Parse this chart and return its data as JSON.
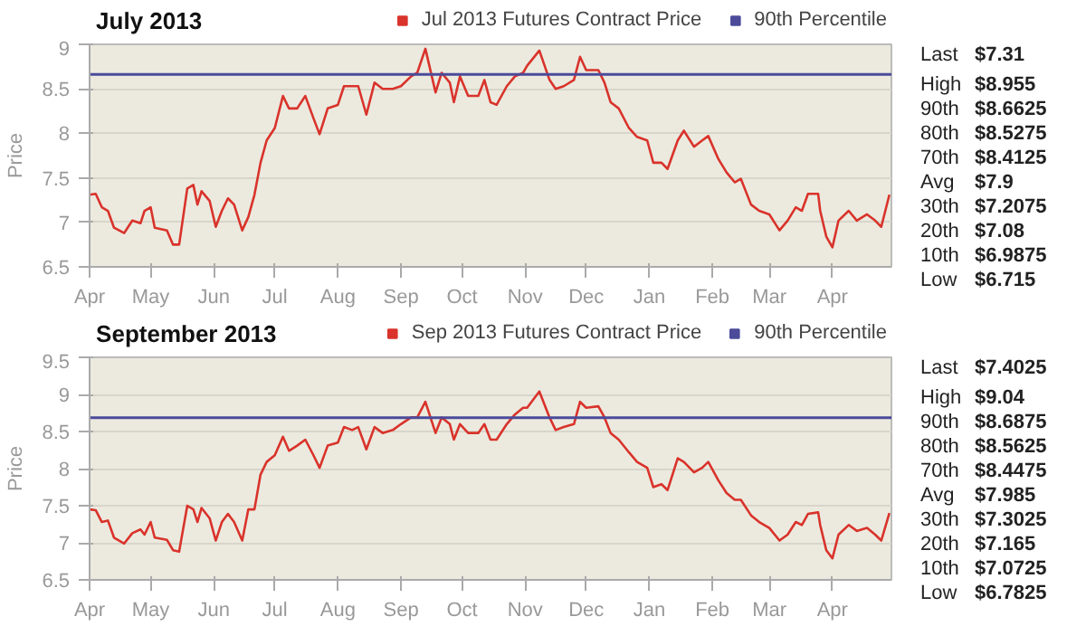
{
  "chart_data": [
    {
      "type": "line",
      "title": "July 2013",
      "ylabel": "Price",
      "legend": "top right",
      "grid": "y",
      "x": [
        "2012-04-01",
        "2012-04-04",
        "2012-04-07",
        "2012-04-10",
        "2012-04-13",
        "2012-04-18",
        "2012-04-22",
        "2012-04-26",
        "2012-04-28",
        "2012-05-01",
        "2012-05-03",
        "2012-05-09",
        "2012-05-12",
        "2012-05-15",
        "2012-05-19",
        "2012-05-22",
        "2012-05-24",
        "2012-05-26",
        "2012-05-30",
        "2012-06-02",
        "2012-06-05",
        "2012-06-08",
        "2012-06-11",
        "2012-06-15",
        "2012-06-18",
        "2012-06-21",
        "2012-06-24",
        "2012-06-27",
        "2012-07-01",
        "2012-07-05",
        "2012-07-08",
        "2012-07-12",
        "2012-07-16",
        "2012-07-20",
        "2012-07-23",
        "2012-07-27",
        "2012-08-01",
        "2012-08-04",
        "2012-08-08",
        "2012-08-11",
        "2012-08-15",
        "2012-08-19",
        "2012-08-23",
        "2012-08-28",
        "2012-09-01",
        "2012-09-06",
        "2012-09-09",
        "2012-09-13",
        "2012-09-18",
        "2012-09-21",
        "2012-09-25",
        "2012-09-27",
        "2012-09-30",
        "2012-10-04",
        "2012-10-09",
        "2012-10-12",
        "2012-10-15",
        "2012-10-18",
        "2012-10-23",
        "2012-10-27",
        "2012-10-31",
        "2012-11-02",
        "2012-11-08",
        "2012-11-13",
        "2012-11-16",
        "2012-11-20",
        "2012-11-25",
        "2012-11-28",
        "2012-12-01",
        "2012-12-07",
        "2012-12-10",
        "2012-12-13",
        "2012-12-17",
        "2012-12-22",
        "2012-12-26",
        "2012-12-31",
        "2013-01-03",
        "2013-01-07",
        "2013-01-10",
        "2013-01-15",
        "2013-01-18",
        "2013-01-23",
        "2013-01-27",
        "2013-01-30",
        "2013-02-04",
        "2013-02-08",
        "2013-02-12",
        "2013-02-15",
        "2013-02-20",
        "2013-02-24",
        "2013-03-01",
        "2013-03-06",
        "2013-03-10",
        "2013-03-14",
        "2013-03-17",
        "2013-03-20",
        "2013-03-25",
        "2013-03-26",
        "2013-03-29",
        "2013-04-01",
        "2013-04-04",
        "2013-04-09",
        "2013-04-13",
        "2013-04-18",
        "2013-04-22",
        "2013-04-25",
        "2013-04-29"
      ],
      "series": [
        {
          "name": "Jul 2013 Futures Contract Price",
          "color": "#d9332b",
          "values": [
            7.31,
            7.32,
            7.17,
            7.13,
            6.94,
            6.88,
            7.02,
            6.99,
            7.13,
            7.17,
            6.94,
            6.91,
            6.75,
            6.75,
            7.38,
            7.42,
            7.2,
            7.35,
            7.24,
            6.95,
            7.13,
            7.27,
            7.2,
            6.91,
            7.06,
            7.31,
            7.67,
            7.92,
            8.06,
            8.42,
            8.28,
            8.28,
            8.42,
            8.17,
            7.99,
            8.28,
            8.32,
            8.53,
            8.53,
            8.53,
            8.21,
            8.57,
            8.5,
            8.5,
            8.53,
            8.64,
            8.68,
            8.95,
            8.46,
            8.68,
            8.57,
            8.35,
            8.64,
            8.42,
            8.42,
            8.6,
            8.35,
            8.32,
            8.53,
            8.64,
            8.68,
            8.76,
            8.93,
            8.6,
            8.5,
            8.53,
            8.6,
            8.86,
            8.71,
            8.71,
            8.57,
            8.35,
            8.28,
            8.06,
            7.96,
            7.92,
            7.67,
            7.67,
            7.6,
            7.92,
            8.03,
            7.85,
            7.92,
            7.97,
            7.71,
            7.56,
            7.45,
            7.49,
            7.2,
            7.13,
            7.09,
            6.91,
            7.02,
            7.17,
            7.13,
            7.32,
            7.32,
            7.13,
            6.84,
            6.72,
            7.02,
            7.13,
            7.02,
            7.09,
            7.02,
            6.95,
            7.31
          ]
        }
      ],
      "ref_lines": [
        {
          "axis": "y",
          "value": 8.6625,
          "label": "90th Percentile",
          "color": "#4b4b9a"
        }
      ],
      "xlim": [
        "2012-04-01",
        "2013-04-30"
      ],
      "xticks": [
        {
          "value": "2012-04-01",
          "label": "Apr"
        },
        {
          "value": "2012-05-01",
          "label": "May"
        },
        {
          "value": "2012-06-01",
          "label": "Jun"
        },
        {
          "value": "2012-07-01",
          "label": "Jul"
        },
        {
          "value": "2012-08-01",
          "label": "Aug"
        },
        {
          "value": "2012-09-01",
          "label": "Sep"
        },
        {
          "value": "2012-10-01",
          "label": "Oct"
        },
        {
          "value": "2012-11-01",
          "label": "Nov"
        },
        {
          "value": "2012-12-01",
          "label": "Dec"
        },
        {
          "value": "2013-01-01",
          "label": "Jan"
        },
        {
          "value": "2013-02-01",
          "label": "Feb"
        },
        {
          "value": "2013-03-01",
          "label": "Mar"
        },
        {
          "value": "2013-04-01",
          "label": "Apr"
        }
      ],
      "ylim": [
        6.5,
        9
      ],
      "yticks": [
        6.5,
        7,
        7.5,
        8,
        8.5,
        9
      ],
      "annotations": [
        "Last $7.31",
        "High $8.955",
        "90th $8.6625",
        "80th $8.5275",
        "70th $8.4125",
        "Avg $7.9",
        "30th $7.2075",
        "20th $7.08",
        "10th $6.9875",
        "Low $6.715"
      ]
    },
    {
      "type": "line",
      "title": "September 2013",
      "ylabel": "Price",
      "legend": "top right",
      "grid": "y",
      "x": [
        "2012-04-01",
        "2012-04-04",
        "2012-04-07",
        "2012-04-10",
        "2012-04-13",
        "2012-04-18",
        "2012-04-22",
        "2012-04-26",
        "2012-04-28",
        "2012-05-01",
        "2012-05-03",
        "2012-05-09",
        "2012-05-12",
        "2012-05-15",
        "2012-05-19",
        "2012-05-22",
        "2012-05-24",
        "2012-05-26",
        "2012-05-30",
        "2012-06-02",
        "2012-06-05",
        "2012-06-08",
        "2012-06-11",
        "2012-06-15",
        "2012-06-18",
        "2012-06-21",
        "2012-06-24",
        "2012-06-27",
        "2012-07-01",
        "2012-07-05",
        "2012-07-08",
        "2012-07-12",
        "2012-07-16",
        "2012-07-20",
        "2012-07-23",
        "2012-07-27",
        "2012-08-01",
        "2012-08-04",
        "2012-08-08",
        "2012-08-11",
        "2012-08-15",
        "2012-08-19",
        "2012-08-23",
        "2012-08-28",
        "2012-09-01",
        "2012-09-06",
        "2012-09-09",
        "2012-09-13",
        "2012-09-18",
        "2012-09-21",
        "2012-09-25",
        "2012-09-27",
        "2012-09-30",
        "2012-10-04",
        "2012-10-09",
        "2012-10-12",
        "2012-10-15",
        "2012-10-18",
        "2012-10-23",
        "2012-10-27",
        "2012-10-31",
        "2012-11-02",
        "2012-11-08",
        "2012-11-13",
        "2012-11-16",
        "2012-11-20",
        "2012-11-25",
        "2012-11-28",
        "2012-12-01",
        "2012-12-07",
        "2012-12-10",
        "2012-12-13",
        "2012-12-17",
        "2012-12-22",
        "2012-12-26",
        "2012-12-31",
        "2013-01-03",
        "2013-01-07",
        "2013-01-10",
        "2013-01-15",
        "2013-01-18",
        "2013-01-23",
        "2013-01-27",
        "2013-01-30",
        "2013-02-04",
        "2013-02-08",
        "2013-02-12",
        "2013-02-15",
        "2013-02-20",
        "2013-02-24",
        "2013-03-01",
        "2013-03-06",
        "2013-03-10",
        "2013-03-14",
        "2013-03-17",
        "2013-03-20",
        "2013-03-25",
        "2013-03-26",
        "2013-03-29",
        "2013-04-01",
        "2013-04-04",
        "2013-04-09",
        "2013-04-13",
        "2013-04-18",
        "2013-04-22",
        "2013-04-25",
        "2013-04-29"
      ],
      "series": [
        {
          "name": "Sep 2013 Futures Contract Price",
          "color": "#d9332b",
          "values": [
            7.45,
            7.44,
            7.28,
            7.3,
            7.07,
            6.99,
            7.13,
            7.18,
            7.11,
            7.28,
            7.07,
            7.04,
            6.9,
            6.88,
            7.5,
            7.45,
            7.28,
            7.47,
            7.33,
            7.03,
            7.28,
            7.39,
            7.28,
            7.03,
            7.45,
            7.45,
            7.92,
            8.09,
            8.18,
            8.43,
            8.24,
            8.31,
            8.39,
            8.18,
            8.01,
            8.31,
            8.35,
            8.56,
            8.52,
            8.56,
            8.26,
            8.56,
            8.48,
            8.52,
            8.6,
            8.69,
            8.69,
            8.9,
            8.48,
            8.69,
            8.6,
            8.39,
            8.6,
            8.48,
            8.48,
            8.6,
            8.39,
            8.39,
            8.6,
            8.73,
            8.82,
            8.82,
            9.04,
            8.69,
            8.52,
            8.56,
            8.6,
            8.9,
            8.82,
            8.84,
            8.69,
            8.48,
            8.39,
            8.22,
            8.09,
            8.01,
            7.75,
            7.79,
            7.71,
            8.14,
            8.09,
            7.95,
            8.01,
            8.09,
            7.84,
            7.67,
            7.58,
            7.58,
            7.37,
            7.28,
            7.2,
            7.03,
            7.11,
            7.28,
            7.24,
            7.39,
            7.41,
            7.24,
            6.9,
            6.79,
            7.11,
            7.24,
            7.16,
            7.2,
            7.11,
            7.03,
            7.4
          ]
        }
      ],
      "ref_lines": [
        {
          "axis": "y",
          "value": 8.6875,
          "label": "90th Percentile",
          "color": "#4b4b9a"
        }
      ],
      "xlim": [
        "2012-04-01",
        "2013-04-30"
      ],
      "xticks": [
        {
          "value": "2012-04-01",
          "label": "Apr"
        },
        {
          "value": "2012-05-01",
          "label": "May"
        },
        {
          "value": "2012-06-01",
          "label": "Jun"
        },
        {
          "value": "2012-07-01",
          "label": "Jul"
        },
        {
          "value": "2012-08-01",
          "label": "Aug"
        },
        {
          "value": "2012-09-01",
          "label": "Sep"
        },
        {
          "value": "2012-10-01",
          "label": "Oct"
        },
        {
          "value": "2012-11-01",
          "label": "Nov"
        },
        {
          "value": "2012-12-01",
          "label": "Dec"
        },
        {
          "value": "2013-01-01",
          "label": "Jan"
        },
        {
          "value": "2013-02-01",
          "label": "Feb"
        },
        {
          "value": "2013-03-01",
          "label": "Mar"
        },
        {
          "value": "2013-04-01",
          "label": "Apr"
        }
      ],
      "ylim": [
        6.5,
        9.5
      ],
      "yticks": [
        6.5,
        7,
        7.5,
        8,
        8.5,
        9,
        9.5
      ],
      "annotations": [
        "Last $7.4025",
        "High $9.04",
        "90th $8.6875",
        "80th $8.5625",
        "70th $8.4475",
        "Avg $7.985",
        "30th $7.3025",
        "20th $7.165",
        "10th $7.0725",
        "Low $6.7825"
      ]
    }
  ]
}
